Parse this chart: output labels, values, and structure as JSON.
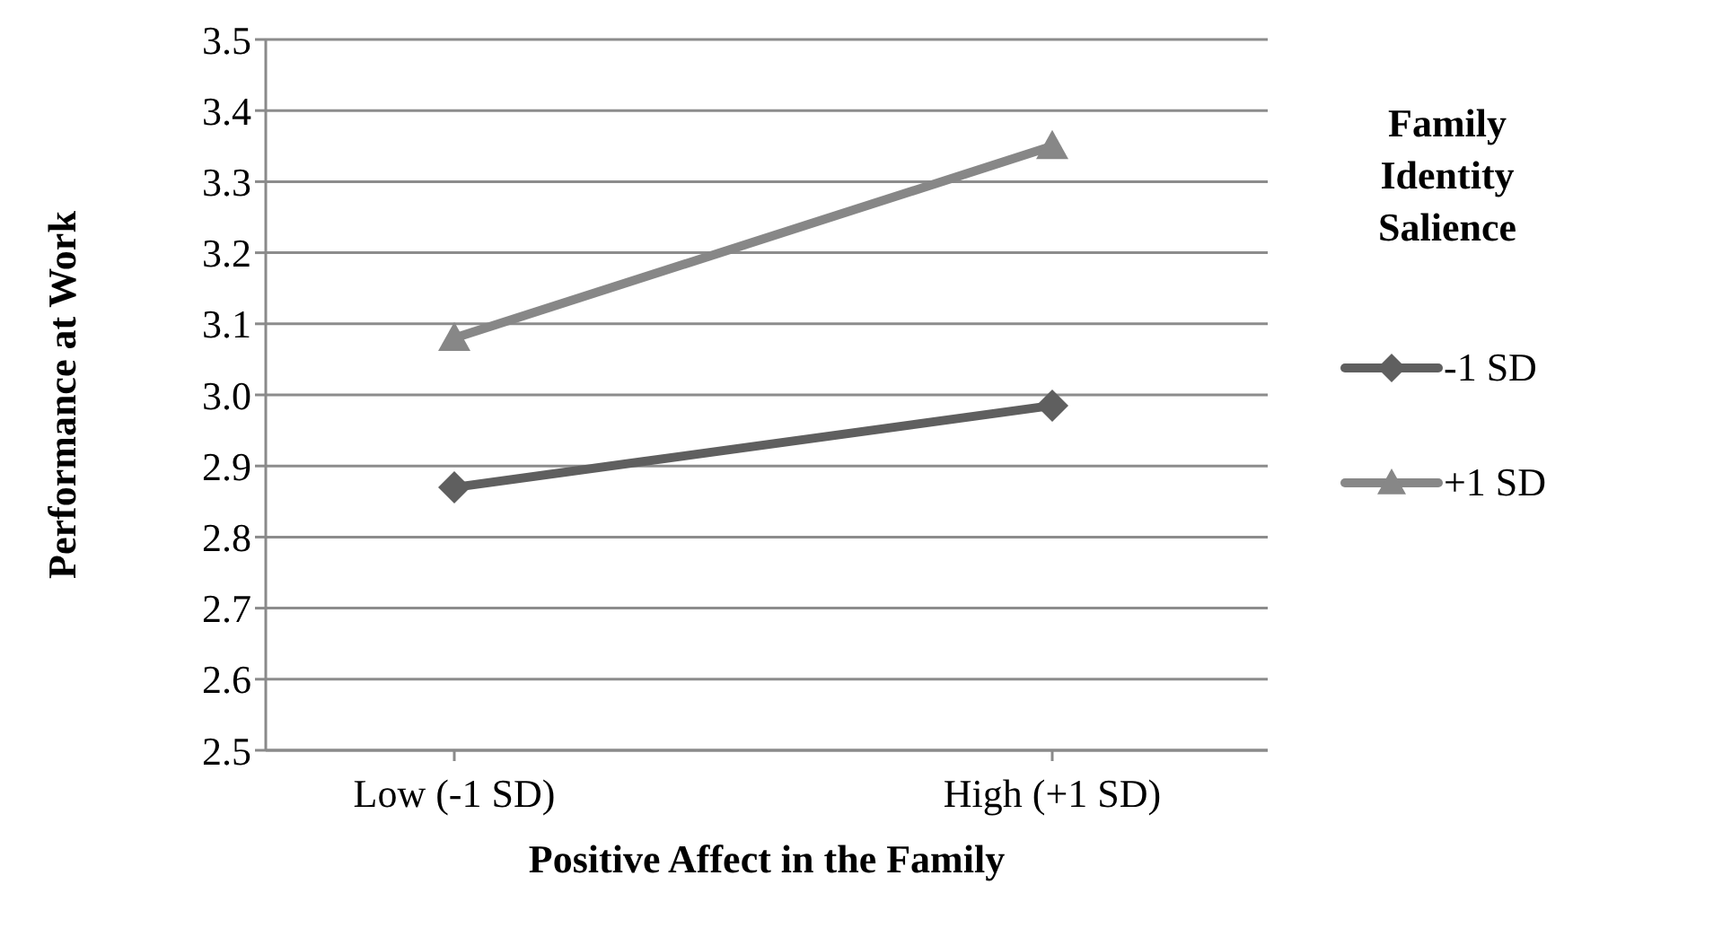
{
  "chart_data": {
    "type": "line",
    "xlabel": "Positive Affect in the Family",
    "ylabel": "Performance at Work",
    "legend_title": "Family Identity Salience",
    "categories": [
      "Low (-1 SD)",
      "High (+1 SD)"
    ],
    "series": [
      {
        "name": "-1 SD",
        "color": "#5f5f5f",
        "values": [
          2.87,
          2.985
        ],
        "marker": "diamond"
      },
      {
        "name": "+1 SD",
        "color": "#878787",
        "values": [
          3.08,
          3.35
        ],
        "marker": "triangle"
      }
    ],
    "ylim": [
      2.5,
      3.5
    ],
    "yticks": [
      2.5,
      2.6,
      2.7,
      2.8,
      2.9,
      {
        "value": 3,
        "label": "3.0"
      },
      3.1,
      3.2,
      3.3,
      3.4,
      3.5
    ],
    "grid": "y",
    "legend": "right",
    "line_style": "solid"
  }
}
